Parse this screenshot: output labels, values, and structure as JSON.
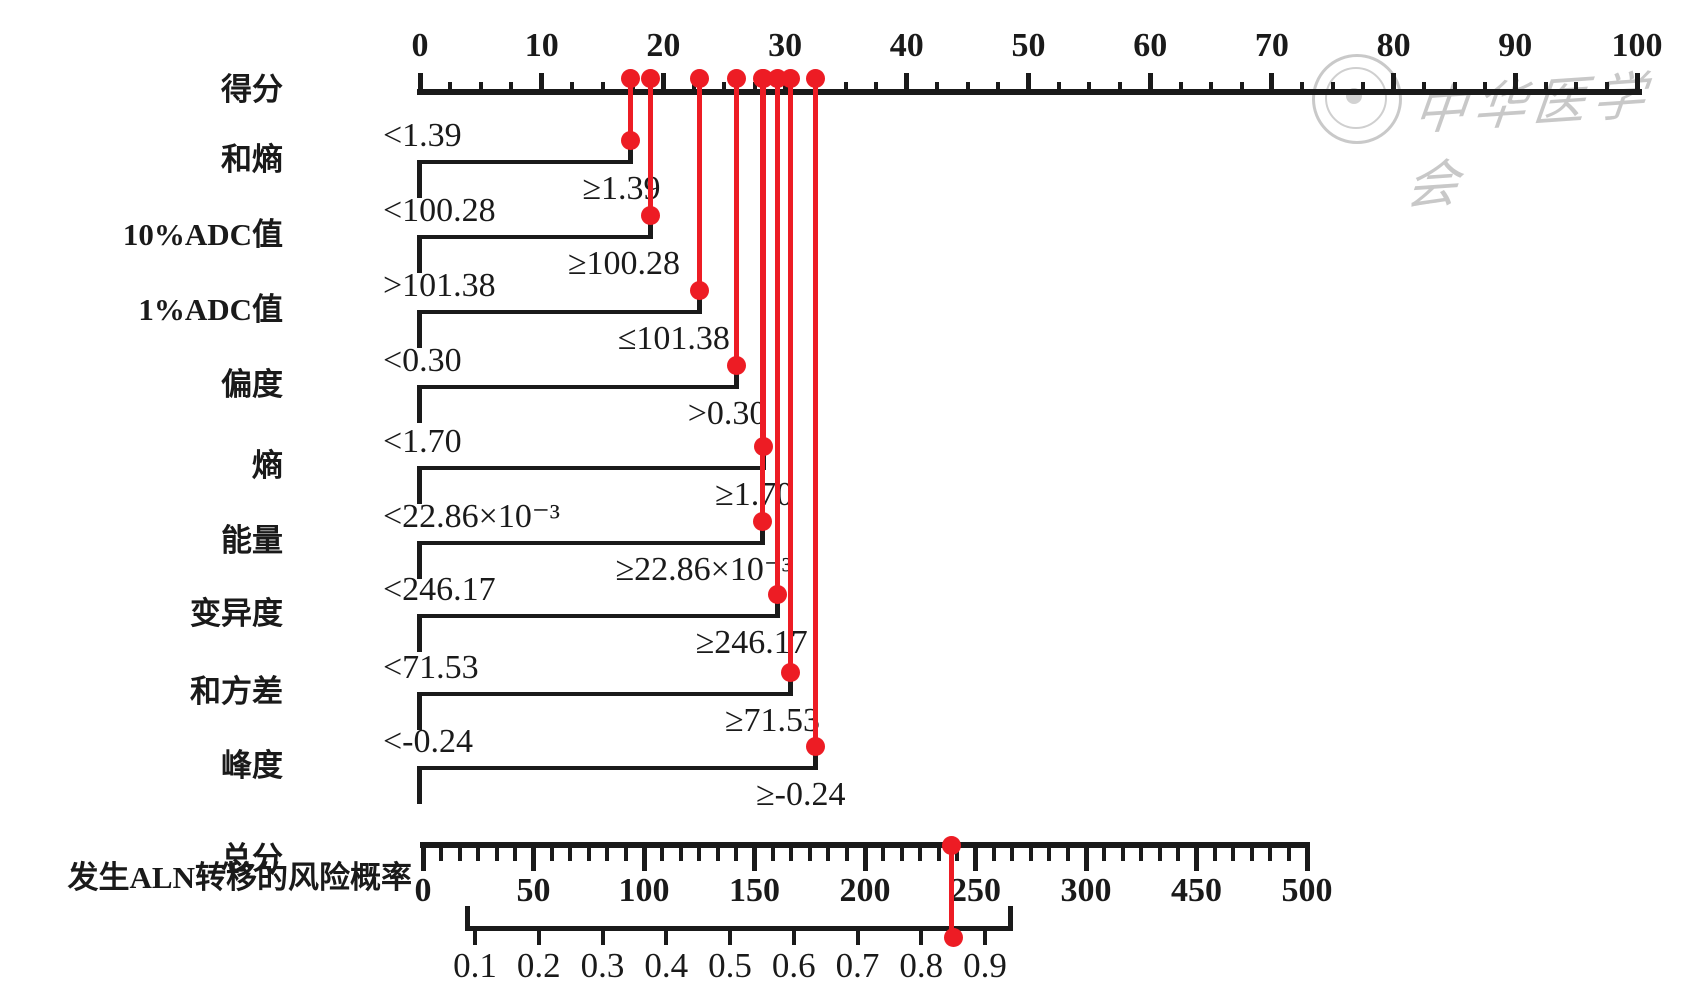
{
  "chart_data": {
    "type": "nomogram",
    "marker_color": "#ed1c24",
    "axis_color": "#1a1a1a",
    "points_axis": {
      "label": "得分",
      "min": 0,
      "max": 100,
      "major_step": 10,
      "minor_step": 2.5,
      "tick_labels": [
        "0",
        "10",
        "20",
        "30",
        "40",
        "50",
        "60",
        "70",
        "80",
        "90",
        "100"
      ]
    },
    "variables": [
      {
        "name": "和熵",
        "left_label": "<1.39",
        "right_label": "≥1.39",
        "points": 17.3
      },
      {
        "name": "10%ADC值",
        "left_label": "<100.28",
        "right_label": "≥100.28",
        "points": 18.9
      },
      {
        "name": "1%ADC值",
        "left_label": ">101.38",
        "right_label": "≤101.38",
        "points": 23.0
      },
      {
        "name": "偏度",
        "left_label": "<0.30",
        "right_label": ">0.30",
        "points": 26.0
      },
      {
        "name": "熵",
        "left_label": "<1.70",
        "right_label": "≥1.70",
        "points": 28.2
      },
      {
        "name": "能量",
        "left_label": "<22.86×10⁻³",
        "right_label": "≥22.86×10⁻³",
        "points": 28.1
      },
      {
        "name": "变异度",
        "left_label": "<246.17",
        "right_label": "≥246.17",
        "points": 29.4
      },
      {
        "name": "和方差",
        "left_label": "<71.53",
        "right_label": "≥71.53",
        "points": 30.4
      },
      {
        "name": "峰度",
        "left_label": "<-0.24",
        "right_label": "≥-0.24",
        "points": 32.5
      }
    ],
    "total_axis": {
      "label": "总分",
      "tick_labels": [
        "0",
        "50",
        "100",
        "150",
        "200",
        "250",
        "300",
        "450",
        "500"
      ],
      "units_per_major": 50,
      "minor_ticks_per_interval": 5,
      "marker_value": 239
    },
    "probability_axis": {
      "label": "发生ALN转移的风险概率",
      "tick_labels": [
        "0.1",
        "0.2",
        "0.3",
        "0.4",
        "0.5",
        "0.6",
        "0.7",
        "0.8",
        "0.9"
      ],
      "marker_value": 0.85
    }
  },
  "watermark": {
    "text": "中华医学会",
    "color": "#c3c3c3"
  }
}
